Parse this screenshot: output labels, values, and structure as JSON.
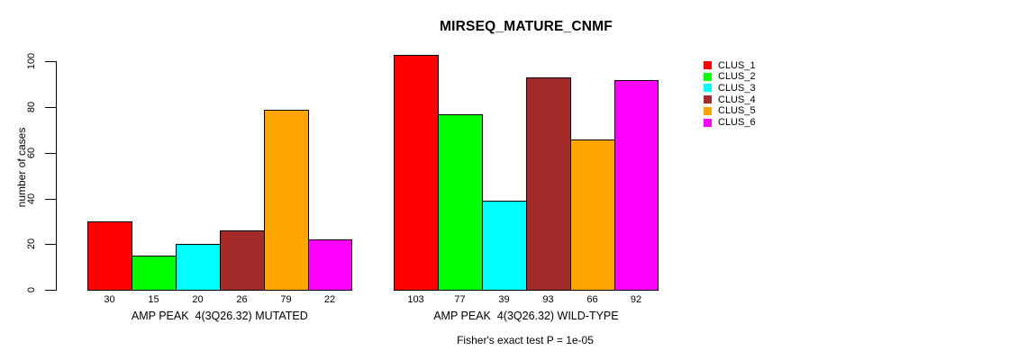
{
  "chart_data": {
    "type": "bar",
    "title": "MIRSEQ_MATURE_CNMF",
    "ylabel": "number of cases",
    "ylim": [
      0,
      100
    ],
    "yticks": [
      "0",
      "20",
      "40",
      "60",
      "80",
      "100"
    ],
    "grid": false,
    "legend_position": "right",
    "bar_outline_color": "#000000",
    "series": [
      {
        "name": "CLUS_1",
        "color": "#FF0000"
      },
      {
        "name": "CLUS_2",
        "color": "#00FF00"
      },
      {
        "name": "CLUS_3",
        "color": "#00FFFF"
      },
      {
        "name": "CLUS_4",
        "color": "#A52A2A"
      },
      {
        "name": "CLUS_5",
        "color": "#FFA500"
      },
      {
        "name": "CLUS_6",
        "color": "#FF00FF"
      }
    ],
    "groups": [
      {
        "label": "AMP PEAK  4(3Q26.32) MUTATED",
        "values": [
          30,
          15,
          20,
          26,
          79,
          22
        ]
      },
      {
        "label": "AMP PEAK  4(3Q26.32) WILD-TYPE",
        "values": [
          103,
          77,
          39,
          93,
          66,
          92
        ]
      }
    ],
    "footnote": "Fisher's exact test P = 1e-05"
  }
}
